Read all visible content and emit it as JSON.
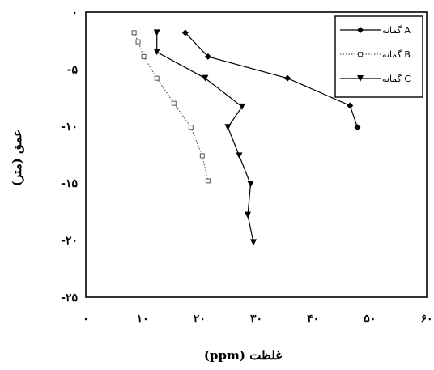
{
  "chart_data": {
    "type": "line",
    "xlabel": "غلظت (ppm)",
    "ylabel": "عمق (متر)",
    "xlim": [
      0,
      60
    ],
    "ylim": [
      -25,
      0
    ],
    "x_ticks": [
      0,
      10,
      20,
      30,
      40,
      50,
      60
    ],
    "x_tick_labels": [
      "۰",
      "۱۰",
      "۲۰",
      "۳۰",
      "۴۰",
      "۵۰",
      "۶۰"
    ],
    "y_ticks": [
      0,
      -5,
      -10,
      -15,
      -20,
      -25
    ],
    "y_tick_labels": [
      "۰",
      "-۵",
      "-۱۰",
      "-۱۵",
      "-۲۰",
      "-۲۵"
    ],
    "grid": false,
    "legend_position": "top-right",
    "series": [
      {
        "name": "گمانه A",
        "color": "#000000",
        "line_style": "solid",
        "marker": "filled-diamond",
        "points": [
          [
            17.5,
            -1.8
          ],
          [
            21.5,
            -3.9
          ],
          [
            35.5,
            -5.8
          ],
          [
            46.5,
            -8.2
          ],
          [
            47.8,
            -10.1
          ]
        ]
      },
      {
        "name": "گمانه B",
        "color": "#555555",
        "line_style": "dotted",
        "marker": "open-square",
        "points": [
          [
            8.5,
            -1.8
          ],
          [
            9.2,
            -2.6
          ],
          [
            10.2,
            -3.9
          ],
          [
            12.5,
            -5.8
          ],
          [
            15.5,
            -8.0
          ],
          [
            18.5,
            -10.1
          ],
          [
            20.5,
            -12.6
          ],
          [
            21.5,
            -14.8
          ]
        ]
      },
      {
        "name": "گمانه C",
        "color": "#000000",
        "line_style": "solid",
        "marker": "filled-triangle-down",
        "points": [
          [
            12.5,
            -1.8
          ],
          [
            12.5,
            -3.5
          ],
          [
            21.0,
            -5.8
          ],
          [
            27.5,
            -8.3
          ],
          [
            25.0,
            -10.1
          ],
          [
            27.0,
            -12.6
          ],
          [
            29.0,
            -15.1
          ],
          [
            28.5,
            -17.8
          ],
          [
            29.5,
            -20.2
          ]
        ]
      }
    ]
  }
}
